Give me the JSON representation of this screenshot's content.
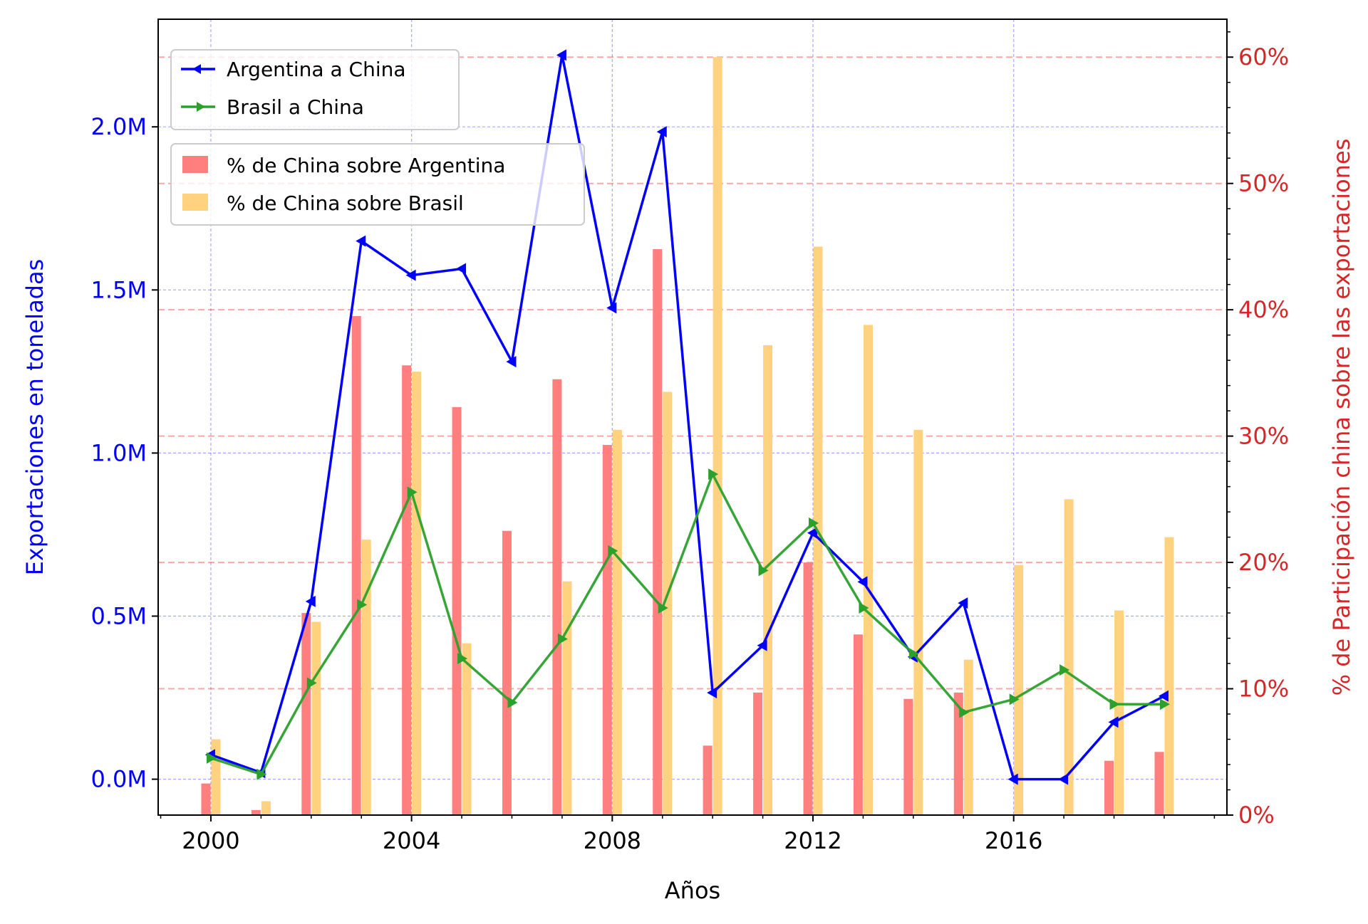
{
  "chart_data": {
    "type": "bar+line",
    "xlabel": "Años",
    "ylabel_left": "Exportaciones en toneladas",
    "ylabel_right": "% de Participación china sobre las exportaciones",
    "x": [
      2000,
      2001,
      2002,
      2003,
      2004,
      2005,
      2006,
      2007,
      2008,
      2009,
      2010,
      2011,
      2012,
      2013,
      2014,
      2015,
      2016,
      2017,
      2018,
      2019
    ],
    "x_ticks": [
      2000,
      2004,
      2008,
      2012,
      2016
    ],
    "x_tick_labels": [
      "2000",
      "2004",
      "2008",
      "2012",
      "2016"
    ],
    "xlim": [
      1998.95,
      2020.25
    ],
    "left_axis": {
      "ylim": [
        -110000,
        2330000
      ],
      "ticks": [
        0,
        500000,
        1000000,
        1500000,
        2000000
      ],
      "tick_labels": [
        "0.0M",
        "0.5M",
        "1.0M",
        "1.5M",
        "2.0M"
      ],
      "color": "#0000ff"
    },
    "right_axis": {
      "ylim": [
        0,
        63
      ],
      "ticks": [
        0,
        10,
        20,
        30,
        40,
        50,
        60
      ],
      "tick_labels": [
        "0%",
        "10%",
        "20%",
        "30%",
        "40%",
        "50%",
        "60%"
      ],
      "color": "#d62728"
    },
    "line_series": [
      {
        "name": "Argentina a China",
        "color": "#0000ff",
        "marker": "triangle-left",
        "values": [
          75000,
          20000,
          545000,
          1650000,
          1545000,
          1565000,
          1280000,
          2220000,
          1445000,
          1985000,
          265000,
          410000,
          755000,
          605000,
          375000,
          540000,
          0,
          0,
          175000,
          255000
        ]
      },
      {
        "name": "Brasil a China",
        "color": "#2ca02c",
        "marker": "triangle-right",
        "values": [
          65000,
          15000,
          295000,
          535000,
          880000,
          370000,
          235000,
          430000,
          700000,
          525000,
          935000,
          640000,
          785000,
          525000,
          385000,
          205000,
          245000,
          335000,
          230000,
          230000
        ]
      }
    ],
    "bar_series": [
      {
        "name": "% de China sobre Argentina",
        "color": "#ff7f7f",
        "values": [
          2.5,
          0.4,
          16,
          39.5,
          35.6,
          32.3,
          22.5,
          34.5,
          29.3,
          44.8,
          5.5,
          9.7,
          20,
          14.3,
          9.2,
          9.7,
          0,
          0,
          4.3,
          5
        ]
      },
      {
        "name": "% de China sobre Brasil",
        "color": "#ffd280",
        "values": [
          6,
          1.1,
          15.3,
          21.8,
          35.1,
          13.6,
          0,
          18.5,
          30.5,
          33.5,
          60,
          37.2,
          45,
          38.8,
          30.5,
          12.3,
          19.8,
          25,
          16.2,
          22
        ]
      }
    ],
    "grid": true,
    "legend_lines_position": "upper-left",
    "legend_bars_position": "upper-left"
  }
}
